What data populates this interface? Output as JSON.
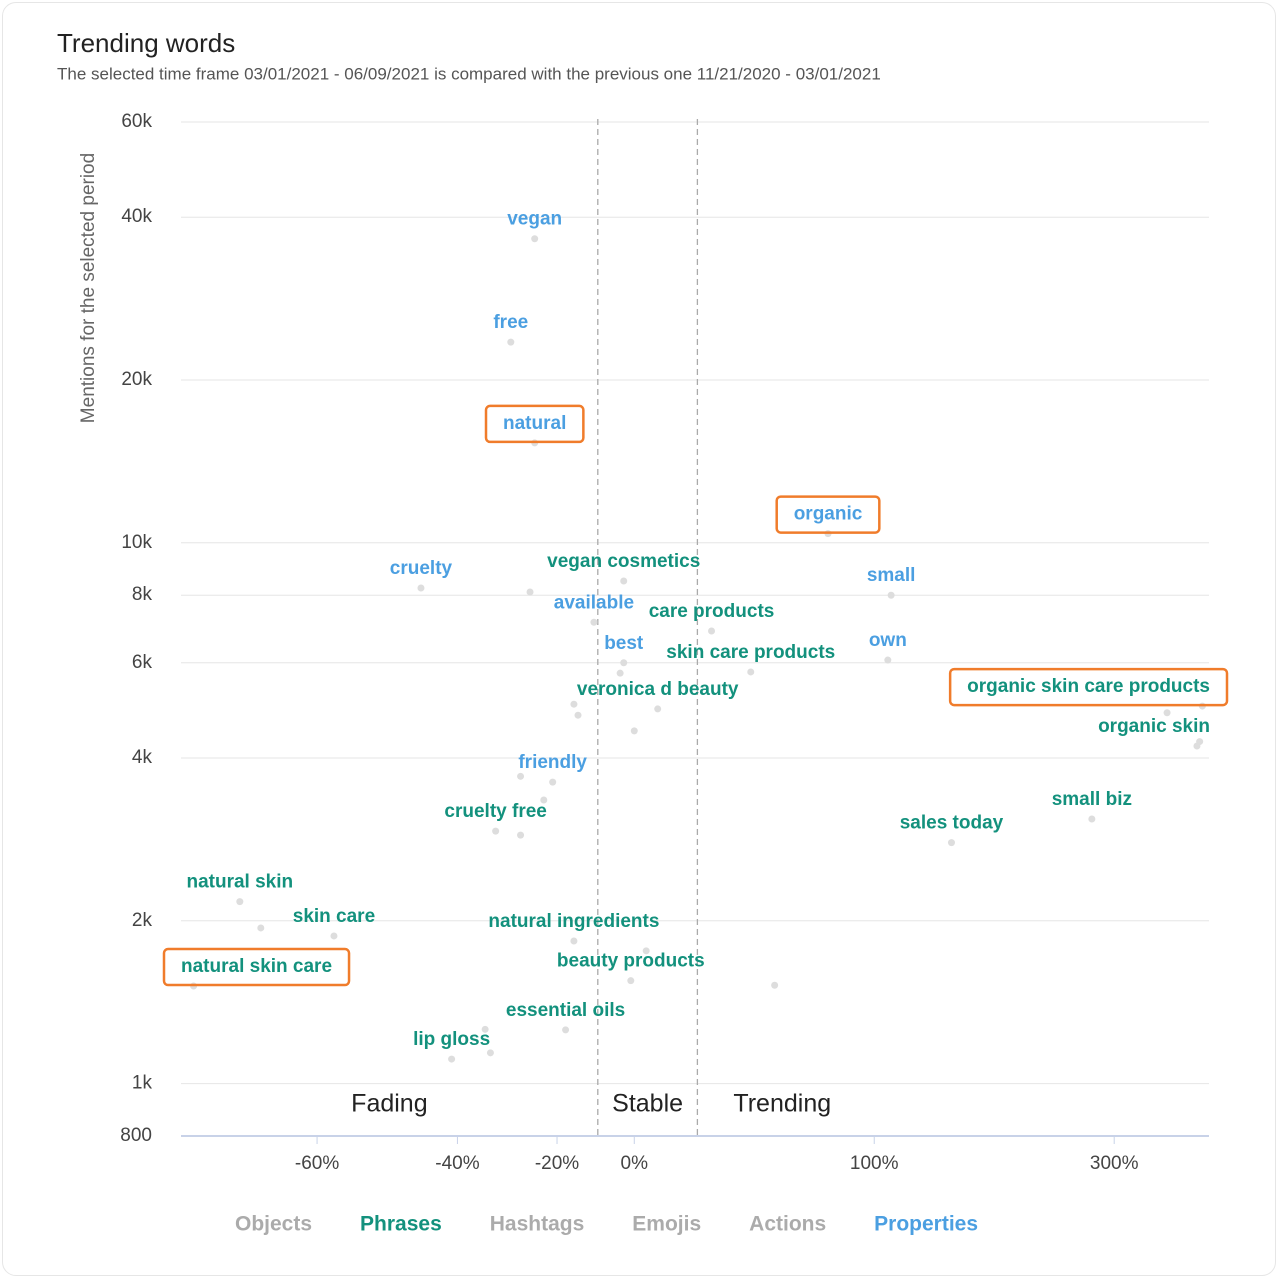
{
  "chart_data": {
    "type": "scatter",
    "title": "Trending words",
    "subtitle": "The selected time frame 03/01/2021 - 06/09/2021 is compared with the previous one 11/21/2020 - 03/01/2021",
    "y_label": "Mentions for the selected period",
    "xscale": "log-ratio",
    "yscale": "log",
    "xlim": [
      -73,
      426
    ],
    "ylim": [
      800,
      60000
    ],
    "xticks": [
      {
        "value": -60,
        "label": "-60%"
      },
      {
        "value": -40,
        "label": "-40%"
      },
      {
        "value": -20,
        "label": "-20%"
      },
      {
        "value": 0,
        "label": "0%"
      },
      {
        "value": 100,
        "label": "100%"
      },
      {
        "value": 300,
        "label": "300%"
      }
    ],
    "yticks": [
      800,
      {
        "value": 1000,
        "label": "1k"
      },
      {
        "value": 2000,
        "label": "2k"
      },
      {
        "value": 4000,
        "label": "4k"
      },
      {
        "value": 6000,
        "label": "6k"
      },
      {
        "value": 8000,
        "label": "8k"
      },
      {
        "value": 10000,
        "label": "10k"
      },
      {
        "value": 20000,
        "label": "20k"
      },
      {
        "value": 40000,
        "label": "40k"
      },
      {
        "value": 60000,
        "label": "60k"
      }
    ],
    "grid": true,
    "thresholds": [
      -10,
      20
    ],
    "regions": [
      "Fading",
      "Stable",
      "Trending"
    ],
    "point_color": "#dddddd",
    "highlight_color": "#f07c2b",
    "series": [
      {
        "name": "Objects",
        "color": "#ababab",
        "labels": [],
        "x": [],
        "values": [],
        "highlight": []
      },
      {
        "name": "Phrases",
        "color": "#13917d",
        "labels": [
          "vegan cosmetics",
          "care products",
          "skin care products",
          "organic skin care products",
          "organic skin",
          "veronica d beauty",
          "cruelty free",
          "sales today",
          "small biz",
          "natural skin",
          "skin care",
          "natural skin care",
          "natural ingredients",
          "beauty products",
          "essential oils",
          "lip gloss"
        ],
        "x": [
          -3,
          25,
          40,
          416,
          408,
          7,
          -33,
          150,
          275,
          -68,
          -58,
          -72,
          -16,
          -1,
          -18,
          -41
        ],
        "values": [
          8500,
          6870,
          5770,
          4990,
          4210,
          4930,
          2930,
          2790,
          3085,
          2170,
          1875,
          1515,
          1835,
          1550,
          1257,
          1110
        ],
        "highlight": [
          false,
          false,
          false,
          true,
          false,
          false,
          false,
          false,
          false,
          false,
          false,
          true,
          false,
          false,
          false,
          false
        ]
      },
      {
        "name": "Hashtags",
        "color": "#ababab",
        "labels": [],
        "x": [],
        "values": [],
        "highlight": []
      },
      {
        "name": "Emojis",
        "color": "#ababab",
        "labels": [],
        "x": [],
        "values": [],
        "highlight": []
      },
      {
        "name": "Actions",
        "color": "#ababab",
        "labels": [],
        "x": [],
        "values": [],
        "highlight": []
      },
      {
        "name": "Properties",
        "color": "#4b9fe1",
        "labels": [
          "vegan",
          "free",
          "natural",
          "organic",
          "cruelty",
          "small",
          "available",
          "best",
          "own",
          "friendly"
        ],
        "x": [
          -25,
          -30,
          -25,
          75,
          -46,
          110,
          -11,
          -3,
          108,
          -21
        ],
        "values": [
          36500,
          23500,
          15300,
          10400,
          8250,
          8000,
          7130,
          6000,
          6070,
          3610
        ],
        "highlight": [
          false,
          false,
          true,
          true,
          false,
          false,
          false,
          false,
          false,
          false
        ]
      }
    ],
    "other_points": {
      "x": [
        -26,
        -15,
        -16,
        -4,
        0,
        -28,
        -23,
        -28,
        -66,
        3.5,
        50,
        -35,
        -34,
        366,
        412
      ],
      "values": [
        8110,
        4800,
        5030,
        5740,
        4490,
        3700,
        3345,
        2880,
        1940,
        1760,
        1520,
        1260,
        1140,
        4850,
        4290
      ]
    }
  }
}
